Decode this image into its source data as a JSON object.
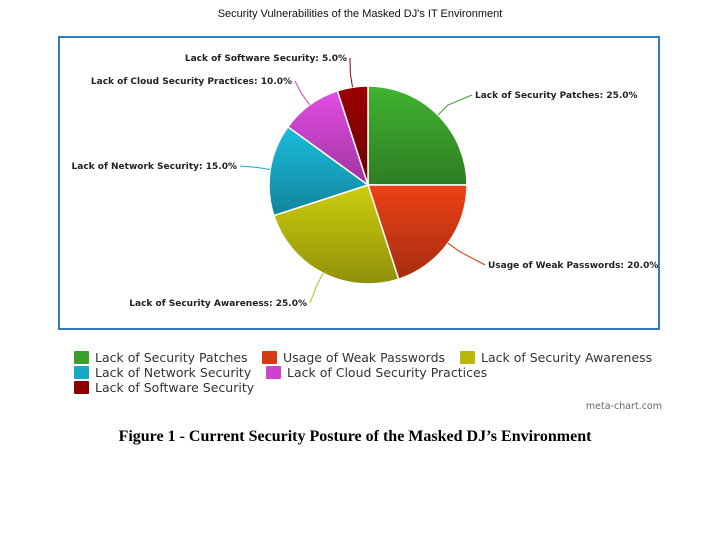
{
  "chart_data": {
    "type": "pie",
    "title": "Security Vulnerabilities of the Masked DJ's IT Environment",
    "categories": [
      "Lack of Security Patches",
      "Usage of Weak Passwords",
      "Lack of Security Awareness",
      "Lack of Network Security",
      "Lack of Cloud Security Practices",
      "Lack of Software Security"
    ],
    "values": [
      25.0,
      20.0,
      25.0,
      15.0,
      10.0,
      5.0
    ],
    "labels": [
      "Lack of Security Patches: 25.0%",
      "Usage of Weak Passwords: 20.0%",
      "Lack of Security Awareness: 25.0%",
      "Lack of Network Security: 15.0%",
      "Lack of Cloud Security Practices: 10.0%",
      "Lack of Software Security: 5.0%"
    ],
    "colors": [
      "#3aa02c",
      "#d43a14",
      "#b7b80c",
      "#17a9c6",
      "#cc44cc",
      "#8b0000"
    ],
    "legend_position": "bottom"
  },
  "legend": [
    {
      "label": "Lack of Security Patches",
      "color": "#3aa02c"
    },
    {
      "label": "Usage of Weak Passwords",
      "color": "#d43a14"
    },
    {
      "label": "Lack of Security Awareness",
      "color": "#b7b80c"
    },
    {
      "label": "Lack of Network Security",
      "color": "#17a9c6"
    },
    {
      "label": "Lack of Cloud Security Practices",
      "color": "#cc44cc"
    },
    {
      "label": "Lack of Software Security",
      "color": "#8b0000"
    }
  ],
  "credit": "meta-chart.com",
  "caption": "Figure 1 - Current Security Posture of the Masked DJ’s Environment"
}
